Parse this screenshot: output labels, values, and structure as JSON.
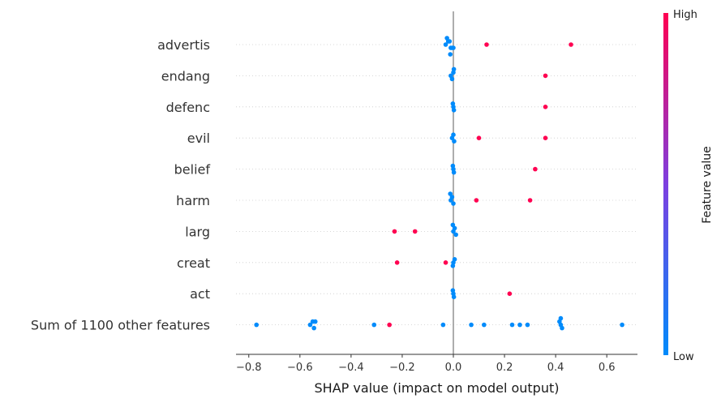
{
  "chart_data": {
    "type": "scatter",
    "title": "",
    "xlabel": "SHAP value (impact on model output)",
    "xlim": [
      -0.85,
      0.72
    ],
    "xticks": [
      -0.8,
      -0.6,
      -0.4,
      -0.2,
      0.0,
      0.2,
      0.4,
      0.6
    ],
    "xtick_labels": [
      "−0.8",
      "−0.6",
      "−0.4",
      "−0.2",
      "0.0",
      "0.2",
      "0.4",
      "0.6"
    ],
    "grid": false,
    "features": [
      {
        "label": "advertis",
        "points": [
          {
            "x": -0.03,
            "v": 0
          },
          {
            "x": -0.02,
            "v": 0
          },
          {
            "x": -0.015,
            "v": 0
          },
          {
            "x": -0.01,
            "v": 0
          },
          {
            "x": -0.005,
            "v": 0
          },
          {
            "x": 0.0,
            "v": 0
          },
          {
            "x": -0.025,
            "v": 0
          },
          {
            "x": -0.012,
            "v": 0
          },
          {
            "x": 0.13,
            "v": 1
          },
          {
            "x": 0.46,
            "v": 1
          }
        ]
      },
      {
        "label": "endang",
        "points": [
          {
            "x": -0.01,
            "v": 0
          },
          {
            "x": 0.0,
            "v": 0
          },
          {
            "x": -0.005,
            "v": 0
          },
          {
            "x": 0.002,
            "v": 0
          },
          {
            "x": 0.36,
            "v": 1
          }
        ]
      },
      {
        "label": "defenc",
        "points": [
          {
            "x": 0.0,
            "v": 0
          },
          {
            "x": -0.002,
            "v": 0
          },
          {
            "x": 0.002,
            "v": 0
          },
          {
            "x": 0.36,
            "v": 1
          }
        ]
      },
      {
        "label": "evil",
        "points": [
          {
            "x": -0.005,
            "v": 0
          },
          {
            "x": 0.0,
            "v": 0
          },
          {
            "x": 0.003,
            "v": 0
          },
          {
            "x": 0.1,
            "v": 1
          },
          {
            "x": 0.36,
            "v": 1
          }
        ]
      },
      {
        "label": "belief",
        "points": [
          {
            "x": 0.0,
            "v": 0
          },
          {
            "x": -0.002,
            "v": 0
          },
          {
            "x": 0.002,
            "v": 0
          },
          {
            "x": 0.32,
            "v": 1
          }
        ]
      },
      {
        "label": "harm",
        "points": [
          {
            "x": -0.01,
            "v": 0
          },
          {
            "x": -0.005,
            "v": 0
          },
          {
            "x": 0.0,
            "v": 0
          },
          {
            "x": -0.012,
            "v": 0
          },
          {
            "x": 0.09,
            "v": 1
          },
          {
            "x": 0.3,
            "v": 1
          }
        ]
      },
      {
        "label": "larg",
        "points": [
          {
            "x": 0.0,
            "v": 0
          },
          {
            "x": 0.005,
            "v": 0
          },
          {
            "x": 0.01,
            "v": 0
          },
          {
            "x": -0.002,
            "v": 0
          },
          {
            "x": -0.23,
            "v": 1
          },
          {
            "x": -0.15,
            "v": 1
          }
        ]
      },
      {
        "label": "creat",
        "points": [
          {
            "x": 0.0,
            "v": 0
          },
          {
            "x": 0.005,
            "v": 0
          },
          {
            "x": -0.002,
            "v": 0
          },
          {
            "x": -0.22,
            "v": 1
          },
          {
            "x": -0.03,
            "v": 1
          }
        ]
      },
      {
        "label": "act",
        "points": [
          {
            "x": 0.0,
            "v": 0
          },
          {
            "x": -0.002,
            "v": 0
          },
          {
            "x": 0.002,
            "v": 0
          },
          {
            "x": 0.22,
            "v": 1
          }
        ]
      },
      {
        "label": "Sum of 1100 other features",
        "points": [
          {
            "x": -0.77,
            "v": 0
          },
          {
            "x": -0.56,
            "v": 0
          },
          {
            "x": -0.55,
            "v": 0
          },
          {
            "x": -0.54,
            "v": 0
          },
          {
            "x": -0.545,
            "v": 0
          },
          {
            "x": -0.31,
            "v": 0
          },
          {
            "x": -0.25,
            "v": 1
          },
          {
            "x": -0.04,
            "v": 0
          },
          {
            "x": 0.07,
            "v": 0
          },
          {
            "x": 0.12,
            "v": 0
          },
          {
            "x": 0.23,
            "v": 0
          },
          {
            "x": 0.26,
            "v": 0
          },
          {
            "x": 0.29,
            "v": 0
          },
          {
            "x": 0.42,
            "v": 0
          },
          {
            "x": 0.415,
            "v": 0
          },
          {
            "x": 0.425,
            "v": 0
          },
          {
            "x": 0.42,
            "v": 0
          },
          {
            "x": 0.66,
            "v": 0
          }
        ]
      }
    ],
    "colorbar": {
      "label": "Feature value",
      "high_label": "High",
      "low_label": "Low",
      "low_color": "#008bfb",
      "high_color": "#ff0051"
    }
  }
}
